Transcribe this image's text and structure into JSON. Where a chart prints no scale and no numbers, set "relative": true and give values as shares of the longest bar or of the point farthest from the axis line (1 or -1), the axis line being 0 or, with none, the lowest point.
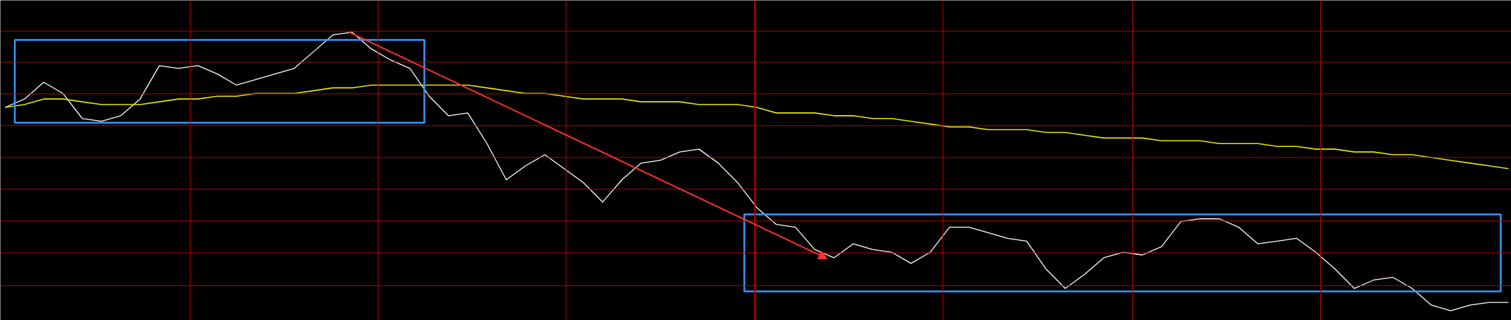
{
  "chart_data": {
    "type": "line",
    "relative": true,
    "grid": true,
    "tick_labels": false,
    "categories": [
      null,
      null,
      null,
      null,
      null,
      null,
      null,
      null,
      null,
      null,
      null,
      null,
      null,
      null,
      null,
      null,
      null,
      null,
      null,
      null,
      null,
      null,
      null,
      null,
      null,
      null,
      null,
      null,
      null,
      null,
      null,
      null,
      null,
      null,
      null,
      null,
      null,
      null,
      null,
      null,
      null,
      null,
      null,
      null,
      null,
      null,
      null,
      null,
      null,
      null,
      null,
      null,
      null,
      null,
      null,
      null,
      null,
      null,
      null,
      null,
      null,
      null,
      null,
      null,
      null,
      null,
      null,
      null,
      null,
      null,
      null,
      null,
      null,
      null,
      null,
      null,
      null,
      null,
      null
    ],
    "series": [
      {
        "color": "#ffffff",
        "values": [
          0.73,
          0.76,
          0.82,
          0.78,
          0.69,
          0.68,
          0.7,
          0.76,
          0.88,
          0.87,
          0.88,
          0.85,
          0.81,
          0.83,
          0.85,
          0.87,
          0.93,
          0.99,
          1.0,
          0.94,
          0.9,
          0.87,
          0.77,
          0.7,
          0.71,
          0.6,
          0.47,
          0.52,
          0.56,
          0.51,
          0.46,
          0.39,
          0.47,
          0.53,
          0.54,
          0.57,
          0.58,
          0.53,
          0.46,
          0.37,
          0.31,
          0.3,
          0.22,
          0.19,
          0.24,
          0.22,
          0.21,
          0.17,
          0.21,
          0.3,
          0.3,
          0.28,
          0.26,
          0.25,
          0.15,
          0.08,
          0.13,
          0.19,
          0.21,
          0.2,
          0.23,
          0.32,
          0.33,
          0.33,
          0.3,
          0.24,
          0.25,
          0.26,
          0.21,
          0.15,
          0.08,
          0.11,
          0.12,
          0.08,
          0.02,
          0.0,
          0.02,
          0.03,
          0.03
        ]
      },
      {
        "color": "#e6e600",
        "values": [
          0.73,
          0.74,
          0.76,
          0.76,
          0.75,
          0.74,
          0.74,
          0.74,
          0.75,
          0.76,
          0.76,
          0.77,
          0.77,
          0.78,
          0.78,
          0.78,
          0.79,
          0.8,
          0.8,
          0.81,
          0.81,
          0.81,
          0.81,
          0.81,
          0.81,
          0.8,
          0.79,
          0.78,
          0.78,
          0.77,
          0.76,
          0.76,
          0.76,
          0.75,
          0.75,
          0.75,
          0.74,
          0.74,
          0.74,
          0.73,
          0.71,
          0.71,
          0.71,
          0.7,
          0.7,
          0.69,
          0.69,
          0.68,
          0.67,
          0.66,
          0.66,
          0.65,
          0.65,
          0.65,
          0.64,
          0.64,
          0.63,
          0.62,
          0.62,
          0.62,
          0.61,
          0.61,
          0.61,
          0.6,
          0.6,
          0.6,
          0.59,
          0.59,
          0.58,
          0.58,
          0.57,
          0.57,
          0.56,
          0.56,
          0.55,
          0.54,
          0.53,
          0.52,
          0.51
        ]
      }
    ]
  }
}
